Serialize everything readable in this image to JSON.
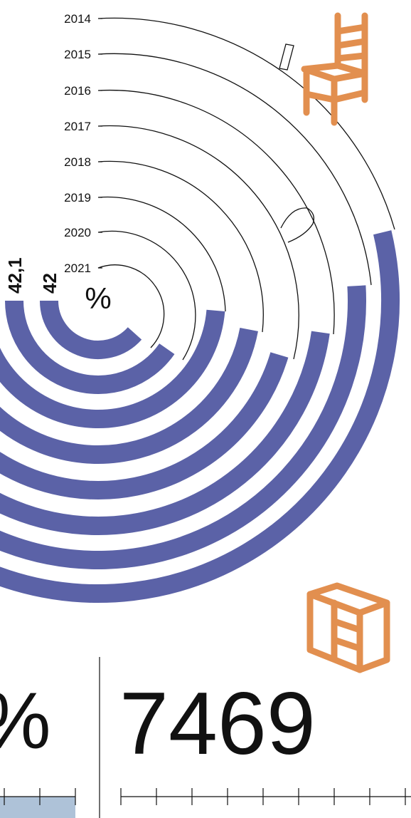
{
  "chart_data": {
    "type": "radial-bar",
    "unit": "%",
    "series": [
      {
        "year": "2014",
        "value": null
      },
      {
        "year": "2015",
        "value": null
      },
      {
        "year": "2016",
        "value": null
      },
      {
        "year": "2017",
        "value": null
      },
      {
        "year": "2018",
        "value": null
      },
      {
        "year": "2019",
        "value": null
      },
      {
        "year": "2020",
        "value": 42.1,
        "label": "42,1"
      },
      {
        "year": "2021",
        "value": 42,
        "label": "42"
      }
    ]
  },
  "stats": {
    "left_value_fragment": "%",
    "right_value": "7469"
  },
  "colors": {
    "bar": "#5b62a7",
    "icon": "#e28f4f",
    "line": "#111111",
    "scale_fill": "#aec2d8"
  },
  "icons": {
    "top": "chair-icon",
    "bottom": "dresser-icon"
  }
}
